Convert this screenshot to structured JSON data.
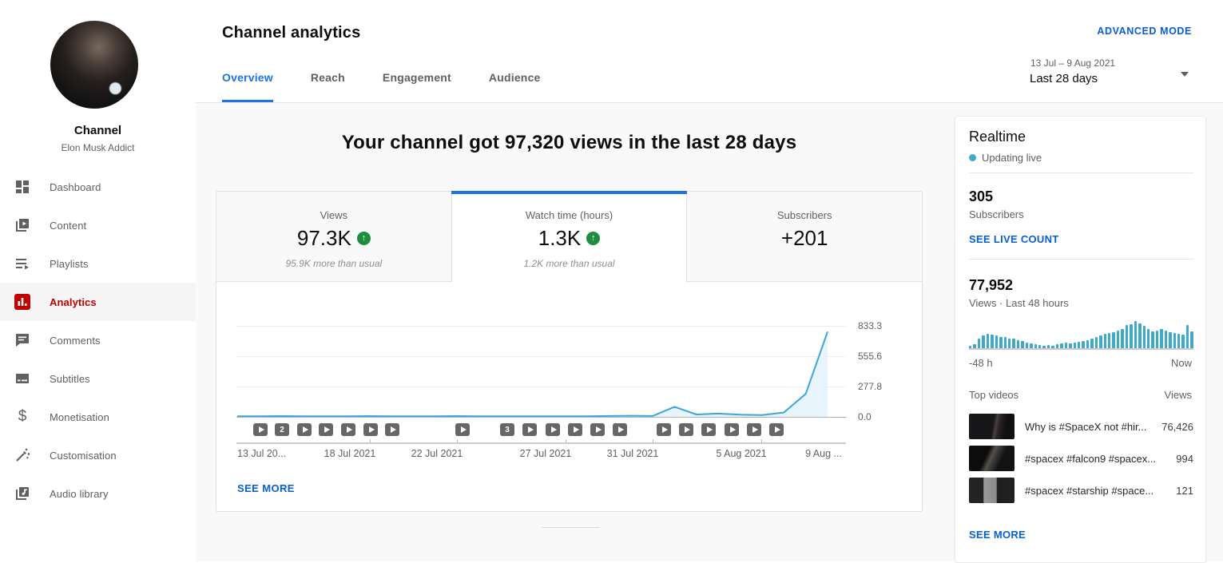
{
  "colors": {
    "tab_blue": "#1a73e8",
    "link_blue": "#065fd4",
    "brand_red": "#c00000",
    "chart_line": "#3ea5d9",
    "chart_fill": "#e8f4fb",
    "realtime_bar": "#3fa9c9",
    "trend_green": "#1e8e3e"
  },
  "sidebar": {
    "channel_label": "Channel",
    "channel_name": "Elon Musk Addict",
    "items": [
      {
        "label": "Dashboard",
        "icon": "dashboard-icon",
        "active": false
      },
      {
        "label": "Content",
        "icon": "content-icon",
        "active": false
      },
      {
        "label": "Playlists",
        "icon": "playlists-icon",
        "active": false
      },
      {
        "label": "Analytics",
        "icon": "analytics-icon",
        "active": true
      },
      {
        "label": "Comments",
        "icon": "comments-icon",
        "active": false
      },
      {
        "label": "Subtitles",
        "icon": "subtitles-icon",
        "active": false
      },
      {
        "label": "Monetisation",
        "icon": "monetisation-icon",
        "active": false
      },
      {
        "label": "Customisation",
        "icon": "customisation-icon",
        "active": false
      },
      {
        "label": "Audio library",
        "icon": "audio-library-icon",
        "active": false
      }
    ]
  },
  "header": {
    "title": "Channel analytics",
    "tabs": [
      {
        "label": "Overview",
        "active": true
      },
      {
        "label": "Reach",
        "active": false
      },
      {
        "label": "Engagement",
        "active": false
      },
      {
        "label": "Audience",
        "active": false
      }
    ],
    "advanced_mode": "ADVANCED MODE",
    "date_range": "13 Jul – 9 Aug 2021",
    "period": "Last 28 days"
  },
  "main": {
    "headline": "Your channel got 97,320 views in the last 28 days",
    "metrics": [
      {
        "label": "Views",
        "value": "97.3K",
        "trend": "up",
        "subtext": "95.9K more than usual",
        "active": false
      },
      {
        "label": "Watch time (hours)",
        "value": "1.3K",
        "trend": "up",
        "subtext": "1.2K more than usual",
        "active": true
      },
      {
        "label": "Subscribers",
        "value": "+201",
        "trend": null,
        "subtext": "",
        "active": false
      }
    ],
    "see_more": "SEE MORE"
  },
  "chart_data": [
    {
      "type": "line",
      "title": "Watch time (hours), daily — 13 Jul to 9 Aug 2021 (selected metric tab)",
      "x": [
        "13 Jul",
        "14 Jul",
        "15 Jul",
        "16 Jul",
        "17 Jul",
        "18 Jul",
        "19 Jul",
        "20 Jul",
        "21 Jul",
        "22 Jul",
        "23 Jul",
        "24 Jul",
        "25 Jul",
        "26 Jul",
        "27 Jul",
        "28 Jul",
        "29 Jul",
        "30 Jul",
        "31 Jul",
        "1 Aug",
        "2 Aug",
        "3 Aug",
        "4 Aug",
        "5 Aug",
        "6 Aug",
        "7 Aug",
        "8 Aug",
        "9 Aug"
      ],
      "values": [
        5,
        6,
        7,
        6,
        5,
        6,
        7,
        6,
        5,
        6,
        7,
        6,
        5,
        6,
        6,
        5,
        6,
        8,
        10,
        8,
        92,
        22,
        30,
        20,
        16,
        40,
        210,
        780
      ],
      "ylim": [
        0,
        833.3
      ],
      "ytick_labels": [
        "833.3",
        "555.6",
        "277.8",
        "0.0"
      ],
      "grid": true,
      "legend": "none",
      "xtick_labels": [
        {
          "label": "13 Jul 20...",
          "x": 26,
          "align": "left",
          "tick": false
        },
        {
          "label": "18 Jul 2021",
          "x": 167,
          "align": "center",
          "tick": true
        },
        {
          "label": "22 Jul 2021",
          "x": 276,
          "align": "center",
          "tick": true
        },
        {
          "label": "27 Jul 2021",
          "x": 412,
          "align": "center",
          "tick": true
        },
        {
          "label": "31 Jul 2021",
          "x": 521,
          "align": "center",
          "tick": true
        },
        {
          "label": "5 Aug 2021",
          "x": 657,
          "align": "center",
          "tick": true
        },
        {
          "label": "9 Aug ...",
          "x": 760,
          "align": "center",
          "tick": false
        }
      ],
      "video_markers": [
        {
          "x": 55
        },
        {
          "x": 82,
          "count": "2"
        },
        {
          "x": 110
        },
        {
          "x": 137
        },
        {
          "x": 165
        },
        {
          "x": 193
        },
        {
          "x": 220
        },
        {
          "x": 308
        },
        {
          "x": 364,
          "count": "3"
        },
        {
          "x": 392
        },
        {
          "x": 421
        },
        {
          "x": 449
        },
        {
          "x": 477
        },
        {
          "x": 505
        },
        {
          "x": 560
        },
        {
          "x": 588
        },
        {
          "x": 616
        },
        {
          "x": 645
        },
        {
          "x": 673
        },
        {
          "x": 701
        }
      ]
    },
    {
      "type": "bar",
      "title": "Realtime views sparkline — last 48 hours (relative heights)",
      "xlabel_left": "-48 h",
      "xlabel_right": "Now",
      "values": [
        0.1,
        0.14,
        0.34,
        0.46,
        0.52,
        0.5,
        0.46,
        0.42,
        0.4,
        0.36,
        0.34,
        0.3,
        0.26,
        0.2,
        0.18,
        0.16,
        0.12,
        0.1,
        0.12,
        0.1,
        0.14,
        0.18,
        0.2,
        0.18,
        0.22,
        0.24,
        0.26,
        0.3,
        0.36,
        0.42,
        0.48,
        0.52,
        0.56,
        0.6,
        0.64,
        0.7,
        0.85,
        0.88,
        1.0,
        0.92,
        0.82,
        0.72,
        0.62,
        0.66,
        0.72,
        0.66,
        0.6,
        0.56,
        0.52,
        0.5,
        0.84,
        0.62
      ]
    }
  ],
  "realtime": {
    "title": "Realtime",
    "status": "Updating live",
    "subscribers": "305",
    "subscribers_label": "Subscribers",
    "live_count_link": "SEE LIVE COUNT",
    "views": "77,952",
    "views_caption": "Views · Last 48 hours",
    "spark_left": "-48 h",
    "spark_right": "Now"
  },
  "top_videos": {
    "header": "Top videos",
    "views_header": "Views",
    "items": [
      {
        "title": "Why is #SpaceX not #hir...",
        "views": "76,426"
      },
      {
        "title": "#spacex #falcon9 #spacex...",
        "views": "994"
      },
      {
        "title": "#spacex #starship #space...",
        "views": "121"
      }
    ],
    "see_more": "SEE MORE"
  }
}
